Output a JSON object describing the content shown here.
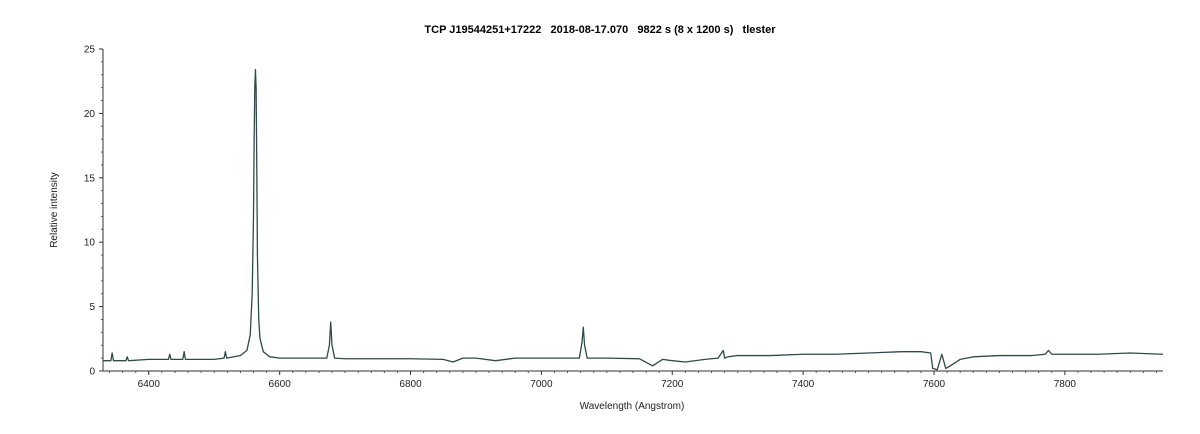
{
  "chart_data": {
    "type": "line",
    "title": "TCP J19544251+17222   2018-08-17.070   9822 s (8 x 1200 s)   tlester",
    "xlabel": "Wavelength (Angstrom)",
    "ylabel": "Relative intensity",
    "xlim": [
      6330,
      7950
    ],
    "ylim": [
      0,
      25
    ],
    "x_ticks": [
      6400,
      6600,
      6800,
      7000,
      7200,
      7400,
      7600,
      7800
    ],
    "x_tick_labels": [
      "6400",
      "6600",
      "6800",
      "7000",
      "7200",
      "7400",
      "7600",
      "7800"
    ],
    "y_ticks": [
      0,
      5,
      10,
      15,
      20,
      25
    ],
    "y_tick_labels": [
      "0",
      "5",
      "10",
      "15",
      "20",
      "25"
    ],
    "grid": false,
    "line_color": "#2f4a48",
    "series": [
      {
        "x": [
          6330,
          6342,
          6344,
          6346,
          6365,
          6367,
          6369,
          6400,
          6430,
          6432,
          6434,
          6452,
          6454,
          6456,
          6500,
          6515,
          6517,
          6519,
          6540,
          6550,
          6555,
          6558,
          6560,
          6561,
          6562,
          6563,
          6564,
          6565,
          6566,
          6568,
          6570,
          6575,
          6585,
          6600,
          6650,
          6672,
          6676,
          6678,
          6680,
          6684,
          6700,
          6750,
          6800,
          6850,
          6865,
          6880,
          6900,
          6930,
          6960,
          7000,
          7030,
          7058,
          7062,
          7064,
          7066,
          7070,
          7100,
          7150,
          7170,
          7185,
          7200,
          7220,
          7250,
          7270,
          7278,
          7280,
          7285,
          7300,
          7350,
          7400,
          7450,
          7500,
          7550,
          7580,
          7595,
          7598,
          7605,
          7612,
          7618,
          7625,
          7640,
          7660,
          7700,
          7750,
          7770,
          7775,
          7780,
          7800,
          7850,
          7900,
          7950
        ],
        "y": [
          0.8,
          0.8,
          1.4,
          0.8,
          0.8,
          1.1,
          0.8,
          0.9,
          0.9,
          1.3,
          0.9,
          0.9,
          1.5,
          0.9,
          0.9,
          1.0,
          1.5,
          1.0,
          1.2,
          1.6,
          2.8,
          6.0,
          12.0,
          18.0,
          22.0,
          23.4,
          22.0,
          16.0,
          9.0,
          4.0,
          2.5,
          1.5,
          1.1,
          1.0,
          1.0,
          1.0,
          2.0,
          3.8,
          2.0,
          1.0,
          0.95,
          0.95,
          0.95,
          0.9,
          0.7,
          1.0,
          1.0,
          0.8,
          1.0,
          1.0,
          1.0,
          1.0,
          2.2,
          3.4,
          2.0,
          1.0,
          1.0,
          0.95,
          0.4,
          0.9,
          0.8,
          0.7,
          0.9,
          1.0,
          1.6,
          1.0,
          1.1,
          1.2,
          1.2,
          1.3,
          1.3,
          1.4,
          1.5,
          1.5,
          1.4,
          0.2,
          0.1,
          1.3,
          0.2,
          0.4,
          0.9,
          1.1,
          1.2,
          1.2,
          1.3,
          1.6,
          1.3,
          1.3,
          1.3,
          1.4,
          1.3
        ]
      }
    ]
  }
}
